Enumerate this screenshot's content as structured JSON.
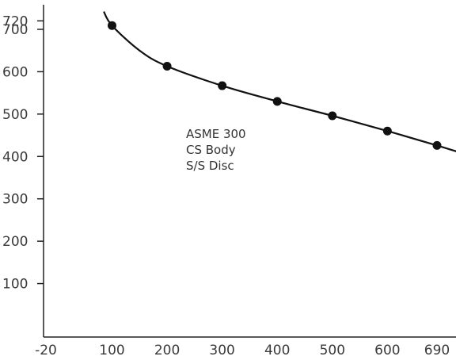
{
  "chart_data": {
    "type": "line",
    "x_ticks": [
      "-20",
      "100",
      "200",
      "300",
      "400",
      "500",
      "600",
      "690"
    ],
    "y_ticks": [
      "100",
      "200",
      "300",
      "400",
      "500",
      "600",
      "700",
      "720"
    ],
    "xlim": [
      -20,
      720
    ],
    "ylim": [
      0,
      720
    ],
    "grid": false,
    "series": [
      {
        "points": [
          {
            "x": 100,
            "y": 709
          },
          {
            "x": 200,
            "y": 613
          },
          {
            "x": 300,
            "y": 567
          },
          {
            "x": 400,
            "y": 530
          },
          {
            "x": 500,
            "y": 496
          },
          {
            "x": 600,
            "y": 460
          },
          {
            "x": 690,
            "y": 426
          }
        ],
        "curve": [
          {
            "x": 85,
            "y": 742
          },
          {
            "x": 100,
            "y": 709
          },
          {
            "x": 150,
            "y": 650
          },
          {
            "x": 200,
            "y": 613
          },
          {
            "x": 300,
            "y": 567
          },
          {
            "x": 400,
            "y": 530
          },
          {
            "x": 500,
            "y": 496
          },
          {
            "x": 600,
            "y": 460
          },
          {
            "x": 690,
            "y": 426
          },
          {
            "x": 725,
            "y": 412
          }
        ],
        "color": "#111111"
      }
    ],
    "annotation": [
      "ASME 300",
      "CS Body",
      "S/S Disc"
    ]
  }
}
